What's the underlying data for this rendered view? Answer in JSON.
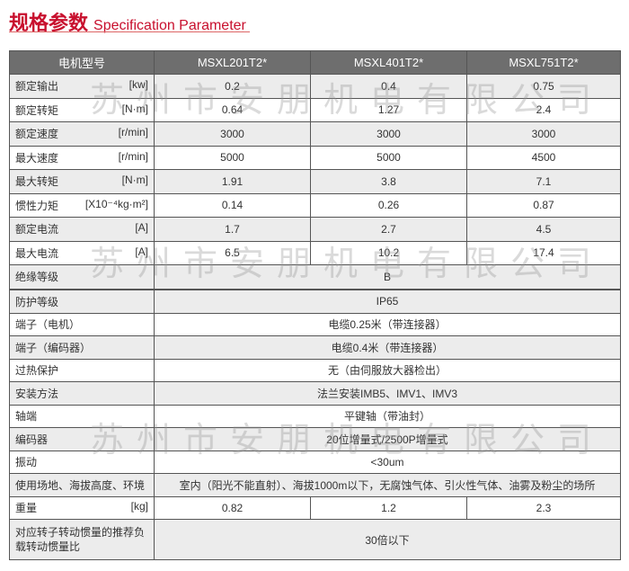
{
  "title": {
    "cn": "规格参数",
    "en": "Specification Parameter"
  },
  "watermark": "苏州市安朋机电有限公司",
  "table1": {
    "header": [
      "电机型号",
      "MSXL201T2*",
      "MSXL401T2*",
      "MSXL751T2*"
    ],
    "rows": [
      {
        "label": "额定输出",
        "unit": "[kw]",
        "values": [
          "0.2",
          "0.4",
          "0.75"
        ]
      },
      {
        "label": "额定转矩",
        "unit": "[N·m]",
        "values": [
          "0.64",
          "1.27",
          "2.4"
        ]
      },
      {
        "label": "额定速度",
        "unit": "[r/min]",
        "values": [
          "3000",
          "3000",
          "3000"
        ]
      },
      {
        "label": "最大速度",
        "unit": "[r/min]",
        "values": [
          "5000",
          "5000",
          "4500"
        ]
      },
      {
        "label": "最大转矩",
        "unit": "[N·m]",
        "values": [
          "1.91",
          "3.8",
          "7.1"
        ]
      },
      {
        "label": "惯性力矩",
        "unit": "[X10⁻⁴kg·m²]",
        "values": [
          "0.14",
          "0.26",
          "0.87"
        ]
      },
      {
        "label": "额定电流",
        "unit": "[A]",
        "values": [
          "1.7",
          "2.7",
          "4.5"
        ]
      },
      {
        "label": "最大电流",
        "unit": "[A]",
        "values": [
          "6.5",
          "10.2",
          "17.4"
        ]
      },
      {
        "label": "绝缘等级",
        "unit": "",
        "values": [
          "B"
        ]
      }
    ]
  },
  "table2": {
    "rows": [
      {
        "label": "防护等级",
        "unit": "",
        "values": [
          "IP65"
        ]
      },
      {
        "label": "端子（电机）",
        "unit": "",
        "values": [
          "电缆0.25米（带连接器）"
        ]
      },
      {
        "label": "端子（编码器）",
        "unit": "",
        "values": [
          "电缆0.4米（带连接器）"
        ]
      },
      {
        "label": "过热保护",
        "unit": "",
        "values": [
          "无（由伺服放大器检出）"
        ]
      },
      {
        "label": "安装方法",
        "unit": "",
        "values": [
          "法兰安装IMB5、IMV1、IMV3"
        ]
      },
      {
        "label": "轴端",
        "unit": "",
        "values": [
          "平键轴（带油封）"
        ]
      },
      {
        "label": "编码器",
        "unit": "",
        "values": [
          "20位增量式/2500P增量式"
        ]
      },
      {
        "label": "振动",
        "unit": "",
        "values": [
          "<30um"
        ]
      },
      {
        "label": "使用场地、海拔高度、环境",
        "unit": "",
        "values": [
          "室内（阳光不能直射）、海拔1000m以下，无腐蚀气体、引火性气体、油雾及粉尘的场所"
        ]
      },
      {
        "label": "重量",
        "unit": "[kg]",
        "values": [
          "0.82",
          "1.2",
          "2.3"
        ]
      },
      {
        "label": "对应转子转动惯量的推荐负载转动惯量比",
        "unit": "",
        "values": [
          "30倍以下"
        ]
      }
    ]
  }
}
